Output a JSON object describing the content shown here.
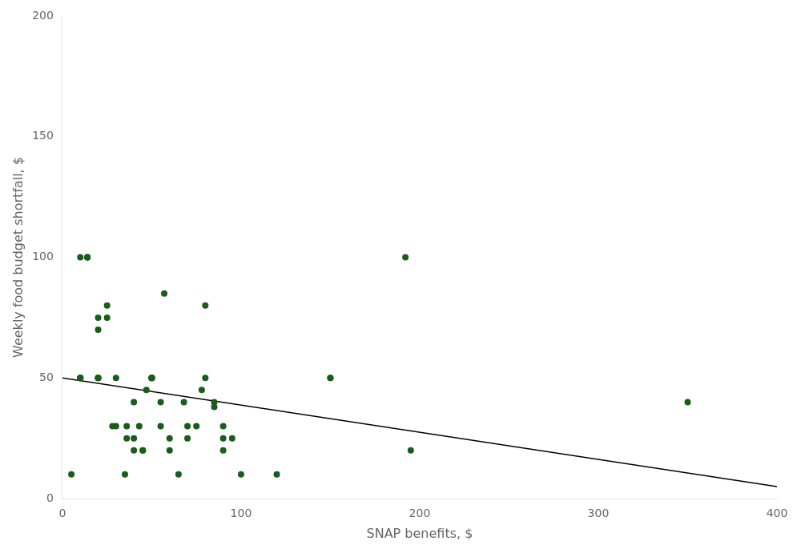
{
  "chart_data": {
    "type": "scatter",
    "xlabel": "SNAP benefits, $",
    "ylabel": "Weekly food budget shortfall, $",
    "series": [
      {
        "type": "scatter",
        "color": "#1a5c1a",
        "marker": "circle",
        "x": [
          5,
          10,
          14,
          14,
          14,
          20,
          20,
          25,
          25,
          28,
          30,
          30,
          35,
          36,
          36,
          40,
          40,
          40,
          43,
          45,
          45,
          47,
          50,
          50,
          50,
          50,
          50,
          55,
          55,
          57,
          60,
          60,
          65,
          68,
          70,
          70,
          75,
          78,
          80,
          80,
          85,
          85,
          90,
          90,
          90,
          95,
          100,
          120,
          150,
          150,
          192,
          195,
          350,
          10,
          10,
          10,
          10,
          20,
          20,
          20
        ],
        "values": [
          10,
          100,
          100,
          100,
          100,
          70,
          75,
          75,
          80,
          30,
          30,
          50,
          10,
          25,
          30,
          40,
          25,
          20,
          30,
          20,
          20,
          45,
          50,
          50,
          50,
          50,
          50,
          40,
          30,
          85,
          20,
          25,
          10,
          40,
          25,
          30,
          30,
          45,
          80,
          50,
          38,
          40,
          20,
          25,
          30,
          25,
          10,
          10,
          50,
          50,
          100,
          20,
          40,
          50,
          50,
          50,
          50,
          50,
          50,
          50
        ]
      },
      {
        "type": "line",
        "color": "#000000",
        "line_style": "solid",
        "x": [
          0,
          400
        ],
        "values": [
          50.0,
          5.0
        ]
      }
    ],
    "xlim": [
      0,
      400
    ],
    "ylim": [
      0,
      200
    ],
    "xticks": [
      0,
      100,
      200,
      300,
      400
    ],
    "yticks": [
      0,
      50,
      100,
      150,
      200
    ],
    "grid": false
  }
}
